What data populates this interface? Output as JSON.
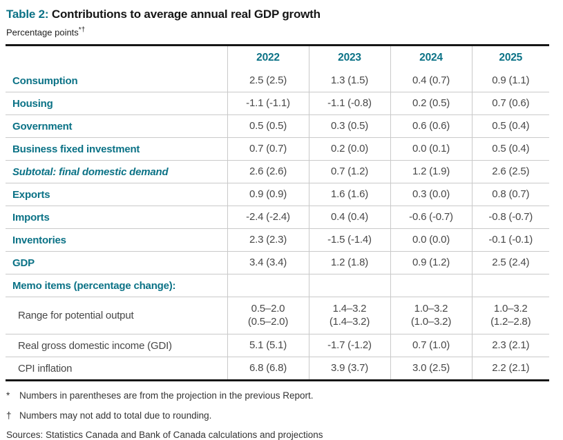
{
  "title": {
    "prefix": "Table 2:",
    "rest": "Contributions to average annual real GDP growth"
  },
  "subtitle": {
    "text": "Percentage points",
    "markers": "*†"
  },
  "colors": {
    "teal": "#0b7286",
    "value_gray": "#474747",
    "rule_gray": "#c9c9c9",
    "border_black": "#161616"
  },
  "table": {
    "columns": [
      "2022",
      "2023",
      "2024",
      "2025"
    ],
    "rows": [
      {
        "label": "Consumption",
        "style": "main",
        "values": [
          "2.5 (2.5)",
          "1.3 (1.5)",
          "0.4 (0.7)",
          "0.9 (1.1)"
        ]
      },
      {
        "label": "Housing",
        "style": "main",
        "values": [
          "-1.1 (-1.1)",
          "-1.1 (-0.8)",
          "0.2 (0.5)",
          "0.7 (0.6)"
        ]
      },
      {
        "label": "Government",
        "style": "main",
        "values": [
          "0.5 (0.5)",
          "0.3 (0.5)",
          "0.6 (0.6)",
          "0.5 (0.4)"
        ]
      },
      {
        "label": "Business fixed investment",
        "style": "main",
        "values": [
          "0.7 (0.7)",
          "0.2 (0.0)",
          "0.0 (0.1)",
          "0.5 (0.4)"
        ]
      },
      {
        "label": "Subtotal: final domestic demand",
        "style": "subtotal",
        "values": [
          "2.6 (2.6)",
          "0.7 (1.2)",
          "1.2 (1.9)",
          "2.6 (2.5)"
        ]
      },
      {
        "label": "Exports",
        "style": "main",
        "values": [
          "0.9 (0.9)",
          "1.6 (1.6)",
          "0.3 (0.0)",
          "0.8 (0.7)"
        ]
      },
      {
        "label": "Imports",
        "style": "main",
        "values": [
          "-2.4 (-2.4)",
          "0.4 (0.4)",
          "-0.6 (-0.7)",
          "-0.8 (-0.7)"
        ]
      },
      {
        "label": "Inventories",
        "style": "main",
        "values": [
          "2.3 (2.3)",
          "-1.5 (-1.4)",
          "0.0 (0.0)",
          "-0.1 (-0.1)"
        ]
      },
      {
        "label": "GDP",
        "style": "main",
        "values": [
          "3.4 (3.4)",
          "1.2 (1.8)",
          "0.9 (1.2)",
          "2.5 (2.4)"
        ]
      },
      {
        "label": "Memo items (percentage change):",
        "style": "memo",
        "values": [
          "",
          "",
          "",
          ""
        ]
      },
      {
        "label": "Range for potential output",
        "style": "sub",
        "values": [
          "0.5–2.0\n(0.5–2.0)",
          "1.4–3.2\n(1.4–3.2)",
          "1.0–3.2\n(1.0–3.2)",
          "1.0–3.2\n(1.2–2.8)"
        ]
      },
      {
        "label": "Real gross domestic income (GDI)",
        "style": "sub",
        "values": [
          "5.1 (5.1)",
          "-1.7 (-1.2)",
          "0.7 (1.0)",
          "2.3 (2.1)"
        ]
      },
      {
        "label": "CPI inflation",
        "style": "sub",
        "values": [
          "6.8 (6.8)",
          "3.9 (3.7)",
          "3.0 (2.5)",
          "2.2 (2.1)"
        ]
      }
    ]
  },
  "footnotes": [
    {
      "marker": "*",
      "text": "Numbers in parentheses are from the projection in the previous Report."
    },
    {
      "marker": "†",
      "text": "Numbers may not add to total due to rounding."
    }
  ],
  "sources": "Sources: Statistics Canada and Bank of Canada calculations and projections"
}
